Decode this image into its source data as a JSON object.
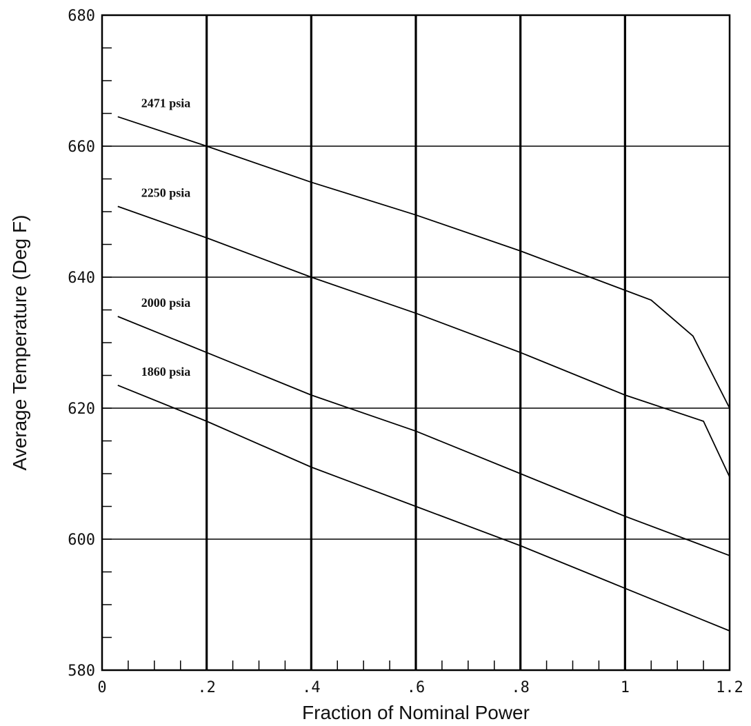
{
  "chart_data": {
    "type": "line",
    "title": "",
    "xlabel": "Fraction of Nominal Power",
    "ylabel": "Average Temperature (Deg F)",
    "xlim": [
      0,
      1.2
    ],
    "ylim": [
      580,
      680
    ],
    "grid": true,
    "x_ticks": [
      {
        "value": 0,
        "label": "0"
      },
      {
        "value": 0.2,
        "label": ".2"
      },
      {
        "value": 0.4,
        "label": ".4"
      },
      {
        "value": 0.6,
        "label": ".6"
      },
      {
        "value": 0.8,
        "label": ".8"
      },
      {
        "value": 1.0,
        "label": "1"
      },
      {
        "value": 1.2,
        "label": "1.2"
      }
    ],
    "y_ticks": [
      {
        "value": 580,
        "label": "580"
      },
      {
        "value": 600,
        "label": "600"
      },
      {
        "value": 620,
        "label": "620"
      },
      {
        "value": 640,
        "label": "640"
      },
      {
        "value": 660,
        "label": "660"
      },
      {
        "value": 680,
        "label": "680"
      }
    ],
    "x_minor_step": 0.05,
    "y_minor_step": 5,
    "series": [
      {
        "name": "2471 psia",
        "x": [
          0.03,
          0.2,
          0.4,
          0.6,
          0.8,
          1.0,
          1.05,
          1.13,
          1.2
        ],
        "y": [
          664.5,
          660,
          654.5,
          649.5,
          644,
          638,
          636.5,
          631,
          620
        ]
      },
      {
        "name": "2250 psia",
        "x": [
          0.03,
          0.2,
          0.4,
          0.6,
          0.8,
          1.0,
          1.15,
          1.2
        ],
        "y": [
          650.8,
          646,
          640,
          634.5,
          628.5,
          622,
          618,
          609.5
        ]
      },
      {
        "name": "2000 psia",
        "x": [
          0.03,
          0.2,
          0.4,
          0.6,
          0.8,
          1.0,
          1.2
        ],
        "y": [
          634,
          628.5,
          622,
          616.5,
          610,
          603.5,
          597.5
        ]
      },
      {
        "name": "1860 psia",
        "x": [
          0.03,
          0.2,
          0.4,
          0.6,
          0.8,
          1.0,
          1.2
        ],
        "y": [
          623.5,
          618,
          611,
          605,
          599,
          592.5,
          586
        ]
      }
    ]
  }
}
